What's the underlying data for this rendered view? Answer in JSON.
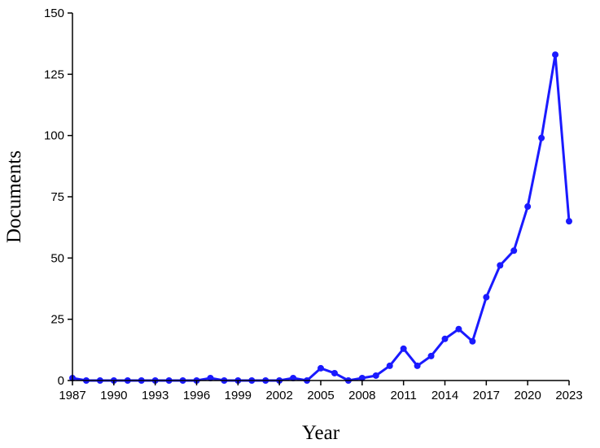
{
  "chart_data": {
    "type": "line",
    "title": "",
    "xlabel": "Year",
    "ylabel": "Documents",
    "xlim": [
      1987,
      2023
    ],
    "ylim": [
      0,
      150
    ],
    "x_ticks": [
      1987,
      1990,
      1993,
      1996,
      1999,
      2002,
      2005,
      2008,
      2011,
      2014,
      2017,
      2020,
      2023
    ],
    "y_ticks": [
      0,
      25,
      50,
      75,
      100,
      125,
      150
    ],
    "grid": false,
    "line_color": "#1a1aff",
    "series": [
      {
        "x": [
          1987,
          1988,
          1989,
          1990,
          1991,
          1992,
          1993,
          1994,
          1995,
          1996,
          1997,
          1998,
          1999,
          2000,
          2001,
          2002,
          2003,
          2004,
          2005,
          2006,
          2007,
          2008,
          2009,
          2010,
          2011,
          2012,
          2013,
          2014,
          2015,
          2016,
          2017,
          2018,
          2019,
          2020,
          2021,
          2022,
          2023
        ],
        "values": [
          1,
          0,
          0,
          0,
          0,
          0,
          0,
          0,
          0,
          0,
          1,
          0,
          0,
          0,
          0,
          0,
          1,
          0,
          5,
          3,
          0,
          1,
          2,
          6,
          13,
          6,
          10,
          17,
          21,
          16,
          34,
          47,
          53,
          71,
          99,
          133,
          65
        ]
      }
    ]
  }
}
